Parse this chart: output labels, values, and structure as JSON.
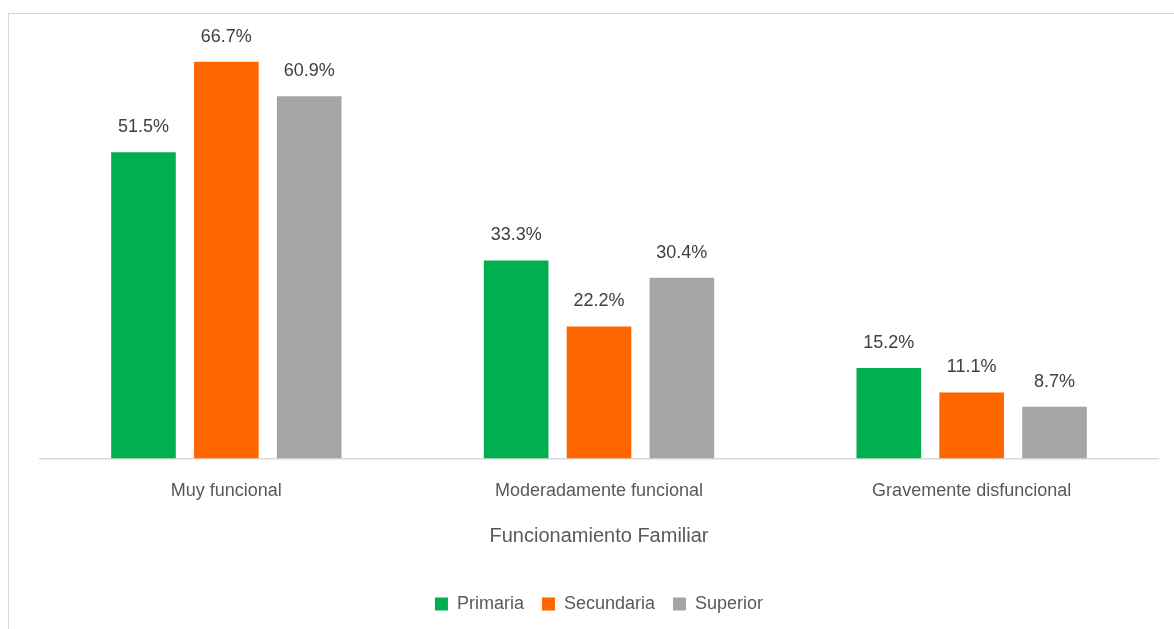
{
  "chart_data": {
    "type": "bar",
    "xlabel": "Funcionamiento Familiar",
    "categories": [
      "Muy funcional",
      "Moderadamente funcional",
      "Gravemente disfuncional"
    ],
    "series": [
      {
        "name": "Primaria",
        "color": "#00b050",
        "values": [
          51.5,
          33.3,
          15.2
        ],
        "value_labels": [
          "51.5%",
          "33.3%",
          "15.2%"
        ]
      },
      {
        "name": "Secundaria",
        "color": "#ff6600",
        "values": [
          66.7,
          22.2,
          11.1
        ],
        "value_labels": [
          "66.7%",
          "22.2%",
          "11.1%"
        ]
      },
      {
        "name": "Superior",
        "color": "#a5a5a5",
        "values": [
          60.9,
          30.4,
          8.7
        ],
        "value_labels": [
          "60.9%",
          "30.4%",
          "8.7%"
        ]
      }
    ],
    "legend": "bottom",
    "grid": false
  }
}
